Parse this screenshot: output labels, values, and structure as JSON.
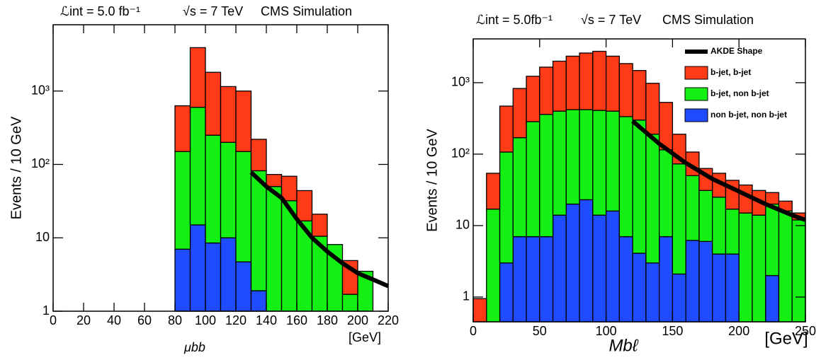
{
  "chart_data": [
    {
      "type": "histogram",
      "title": "CMS Simulation",
      "annotations": [
        "ℒint = 5.0 fb⁻¹",
        "√s = 7 TeV"
      ],
      "ylabel": "Events / 10 GeV",
      "xlabel": "μbb",
      "xunit": "[GeV]",
      "log_y": true,
      "xlim": [
        0,
        220
      ],
      "ylim": [
        1,
        8000
      ],
      "xticks": [
        0,
        20,
        40,
        60,
        80,
        100,
        120,
        140,
        160,
        180,
        200,
        220
      ],
      "yticks": [
        1,
        10,
        {
          "value": 100,
          "label": "10²"
        },
        {
          "value": 1000,
          "label": "10³"
        }
      ],
      "bins": [
        80,
        90,
        100,
        110,
        120,
        130,
        140,
        150,
        160,
        170,
        180,
        190,
        200,
        210
      ],
      "series": [
        {
          "color": "#ff3a17",
          "values": [
            480,
            3300,
            1550,
            950,
            850,
            138,
            23,
            37,
            27,
            10.5,
            0,
            3.2,
            0
          ]
        },
        {
          "color": "#14f014",
          "values": [
            143,
            585,
            241.5,
            190,
            145.3,
            80.1,
            50,
            32,
            17,
            10.5,
            8.1,
            1.7,
            3.5
          ]
        },
        {
          "color": "#1f4cff",
          "values": [
            7,
            15,
            8.5,
            10,
            4.7,
            1.9,
            0,
            0,
            0,
            0,
            0,
            0,
            0
          ]
        }
      ],
      "fit": {
        "color": "#000000",
        "x": [
          130,
          140,
          150,
          160,
          170,
          180,
          190,
          200,
          210,
          220
        ],
        "values": [
          78,
          50,
          35,
          18,
          10,
          6.5,
          4.5,
          3.3,
          2.7,
          2.2
        ]
      }
    },
    {
      "type": "histogram",
      "title": "CMS Simulation",
      "annotations": [
        "ℒint = 5.0fb⁻¹",
        "√s = 7 TeV"
      ],
      "ylabel": "Events / 10 GeV",
      "xlabel": "Mbℓ",
      "xunit": "[GeV]",
      "log_y": true,
      "legend": "upper right",
      "xlim": [
        0,
        250
      ],
      "ylim": [
        0.45,
        4100
      ],
      "xticks": [
        0,
        50,
        100,
        150,
        200,
        250
      ],
      "yticks": [
        1,
        10,
        {
          "value": 100,
          "label": "10²"
        },
        {
          "value": 1000,
          "label": "10³"
        }
      ],
      "bins": [
        0,
        10,
        20,
        30,
        40,
        50,
        60,
        70,
        80,
        90,
        100,
        110,
        120,
        130,
        140,
        150,
        160,
        170,
        180,
        190,
        200,
        210,
        220,
        230,
        240,
        250
      ],
      "series": [
        {
          "name": "b-jet, b-jet",
          "color": "#ff3a17",
          "values": [
            0.95,
            37,
            363,
            660,
            945,
            1290,
            1600,
            1930,
            2180,
            2340,
            1950,
            1515,
            1180,
            790,
            415,
            117,
            57,
            32,
            29,
            26,
            22,
            17,
            9,
            6,
            3
          ]
        },
        {
          "name": "b-jet, non b-jet",
          "color": "#14f014",
          "values": [
            0,
            17,
            104,
            163,
            278,
            353,
            386,
            400,
            397,
            396,
            384,
            328,
            295.9,
            187,
            108,
            70.9,
            43.8,
            25,
            21,
            13,
            15,
            14,
            18,
            16,
            12
          ]
        },
        {
          "name": "non b-jet, non b-jet",
          "color": "#1f4cff",
          "values": [
            0,
            0,
            3,
            7,
            7,
            7,
            14,
            20,
            23,
            14,
            16,
            7,
            4.1,
            3,
            7,
            2.1,
            6.2,
            6,
            4,
            4,
            0,
            0,
            2,
            0,
            0
          ]
        }
      ],
      "fit": {
        "name": "AKDE Shape",
        "color": "#000000",
        "x": [
          120,
          140,
          160,
          180,
          200,
          220,
          240,
          250
        ],
        "values": [
          290,
          140,
          75,
          45,
          30,
          20,
          14,
          12
        ]
      }
    }
  ]
}
